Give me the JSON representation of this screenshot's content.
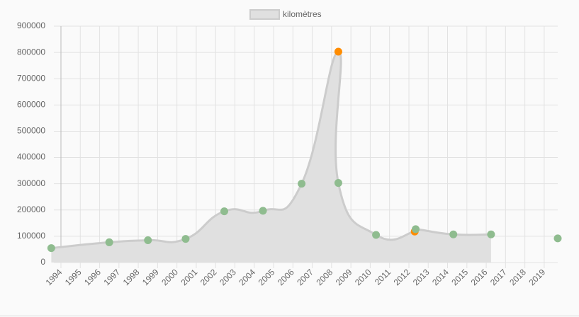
{
  "chart_data": {
    "type": "area",
    "series": [
      {
        "name": "kilomètres",
        "color": "#cccccc",
        "fill": "#e0e0e0",
        "x": [
          1993.5,
          1996.5,
          1998.5,
          2000.45,
          2002.45,
          2004.45,
          2006.45,
          2008.35,
          2008.35,
          2010.3,
          2012.3,
          2012.35,
          2014.3,
          2016.25
        ],
        "values": [
          55000,
          77000,
          85000,
          90000,
          195000,
          197000,
          300000,
          803000,
          303000,
          105000,
          118000,
          127000,
          107000,
          107000
        ],
        "point_colors": [
          "#8fbc8f",
          "#8fbc8f",
          "#8fbc8f",
          "#8fbc8f",
          "#8fbc8f",
          "#8fbc8f",
          "#8fbc8f",
          "#ff8c00",
          "#8fbc8f",
          "#8fbc8f",
          "#ff8c00",
          "#8fbc8f",
          "#8fbc8f",
          "#8fbc8f"
        ]
      }
    ],
    "isolated_points": {
      "color": "#8fbc8f",
      "x": [
        2019.7
      ],
      "values": [
        92000
      ]
    },
    "xlim": [
      1994,
      2019.7
    ],
    "xticks": [
      1994,
      1995,
      1996,
      1997,
      1998,
      1999,
      2000,
      2001,
      2002,
      2003,
      2004,
      2005,
      2006,
      2007,
      2008,
      2009,
      2010,
      2011,
      2012,
      2013,
      2014,
      2015,
      2016,
      2017,
      2018,
      2019
    ],
    "ylim": [
      0,
      900000
    ],
    "yticks": [
      0,
      100000,
      200000,
      300000,
      400000,
      500000,
      600000,
      700000,
      800000,
      900000
    ],
    "grid": true
  }
}
